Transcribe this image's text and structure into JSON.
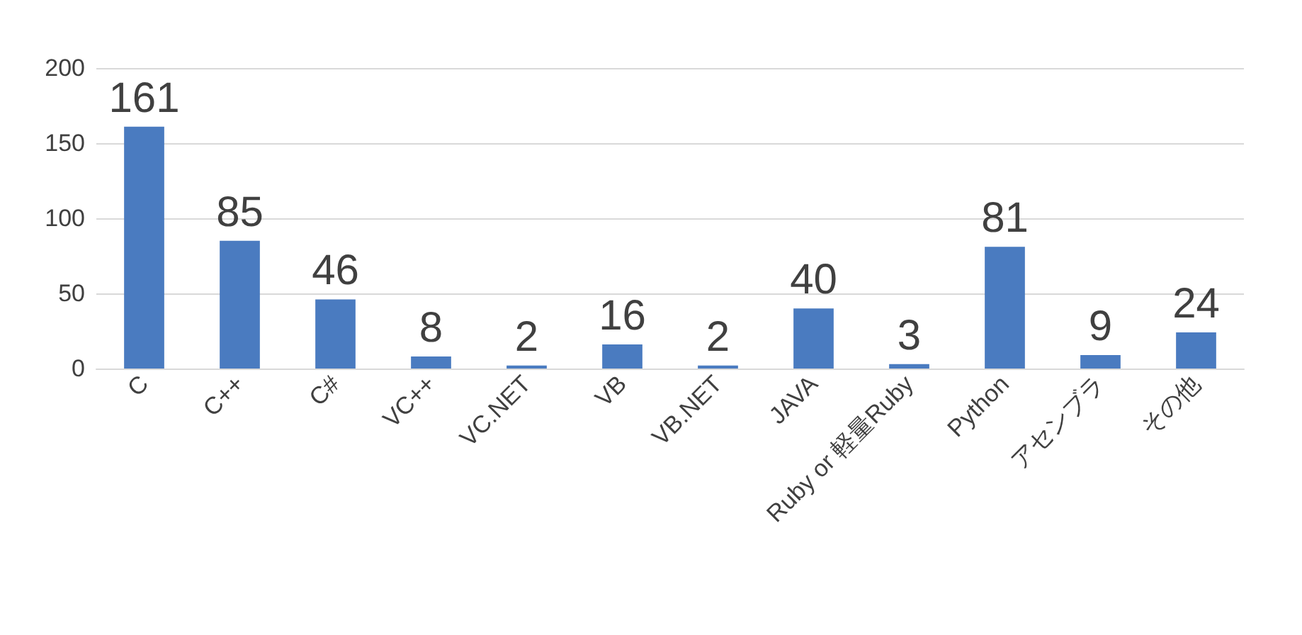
{
  "chart_data": {
    "type": "bar",
    "categories": [
      "C",
      "C++",
      "C#",
      "VC++",
      "VC.NET",
      "VB",
      "VB.NET",
      "JAVA",
      "Ruby or 軽量Ruby",
      "Python",
      "アセンブラ",
      "その他"
    ],
    "values": [
      161,
      85,
      46,
      8,
      2,
      16,
      2,
      40,
      3,
      81,
      9,
      24
    ],
    "color": "#4a7bc0",
    "ylim": [
      0,
      200
    ],
    "yticks": [
      0,
      50,
      100,
      150,
      200
    ],
    "grid": "y",
    "data_labels": true
  }
}
